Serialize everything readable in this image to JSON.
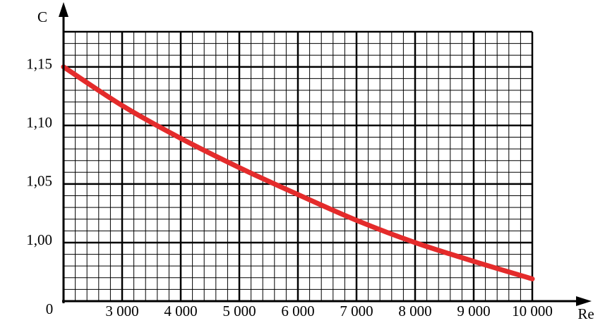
{
  "chart_data": {
    "type": "line",
    "xlabel": "Re",
    "ylabel": "C",
    "origin_label": "0",
    "x": [
      2000,
      3000,
      4000,
      5000,
      6000,
      7000,
      8000,
      9000,
      10000
    ],
    "series": [
      {
        "color": "#e42b2b",
        "values": [
          1.15,
          1.117,
          1.089,
          1.064,
          1.041,
          1.019,
          1.0,
          0.984,
          0.969
        ]
      }
    ],
    "xlim": [
      2000,
      10000
    ],
    "ylim": [
      0.95,
      1.18
    ],
    "xticks": [
      {
        "value": 3000,
        "label": "3 000"
      },
      {
        "value": 4000,
        "label": "4 000"
      },
      {
        "value": 5000,
        "label": "5 000"
      },
      {
        "value": 6000,
        "label": "6 000"
      },
      {
        "value": 7000,
        "label": "7 000"
      },
      {
        "value": 8000,
        "label": "8 000"
      },
      {
        "value": 9000,
        "label": "9 000"
      },
      {
        "value": 10000,
        "label": "10 000"
      }
    ],
    "yticks": [
      {
        "value": 1.0,
        "label": "1,00"
      },
      {
        "value": 1.05,
        "label": "1,05"
      },
      {
        "value": 1.1,
        "label": "1,10"
      },
      {
        "value": 1.15,
        "label": "1,15"
      }
    ],
    "grid": true,
    "xminor": 200,
    "yminor": 0.01
  }
}
